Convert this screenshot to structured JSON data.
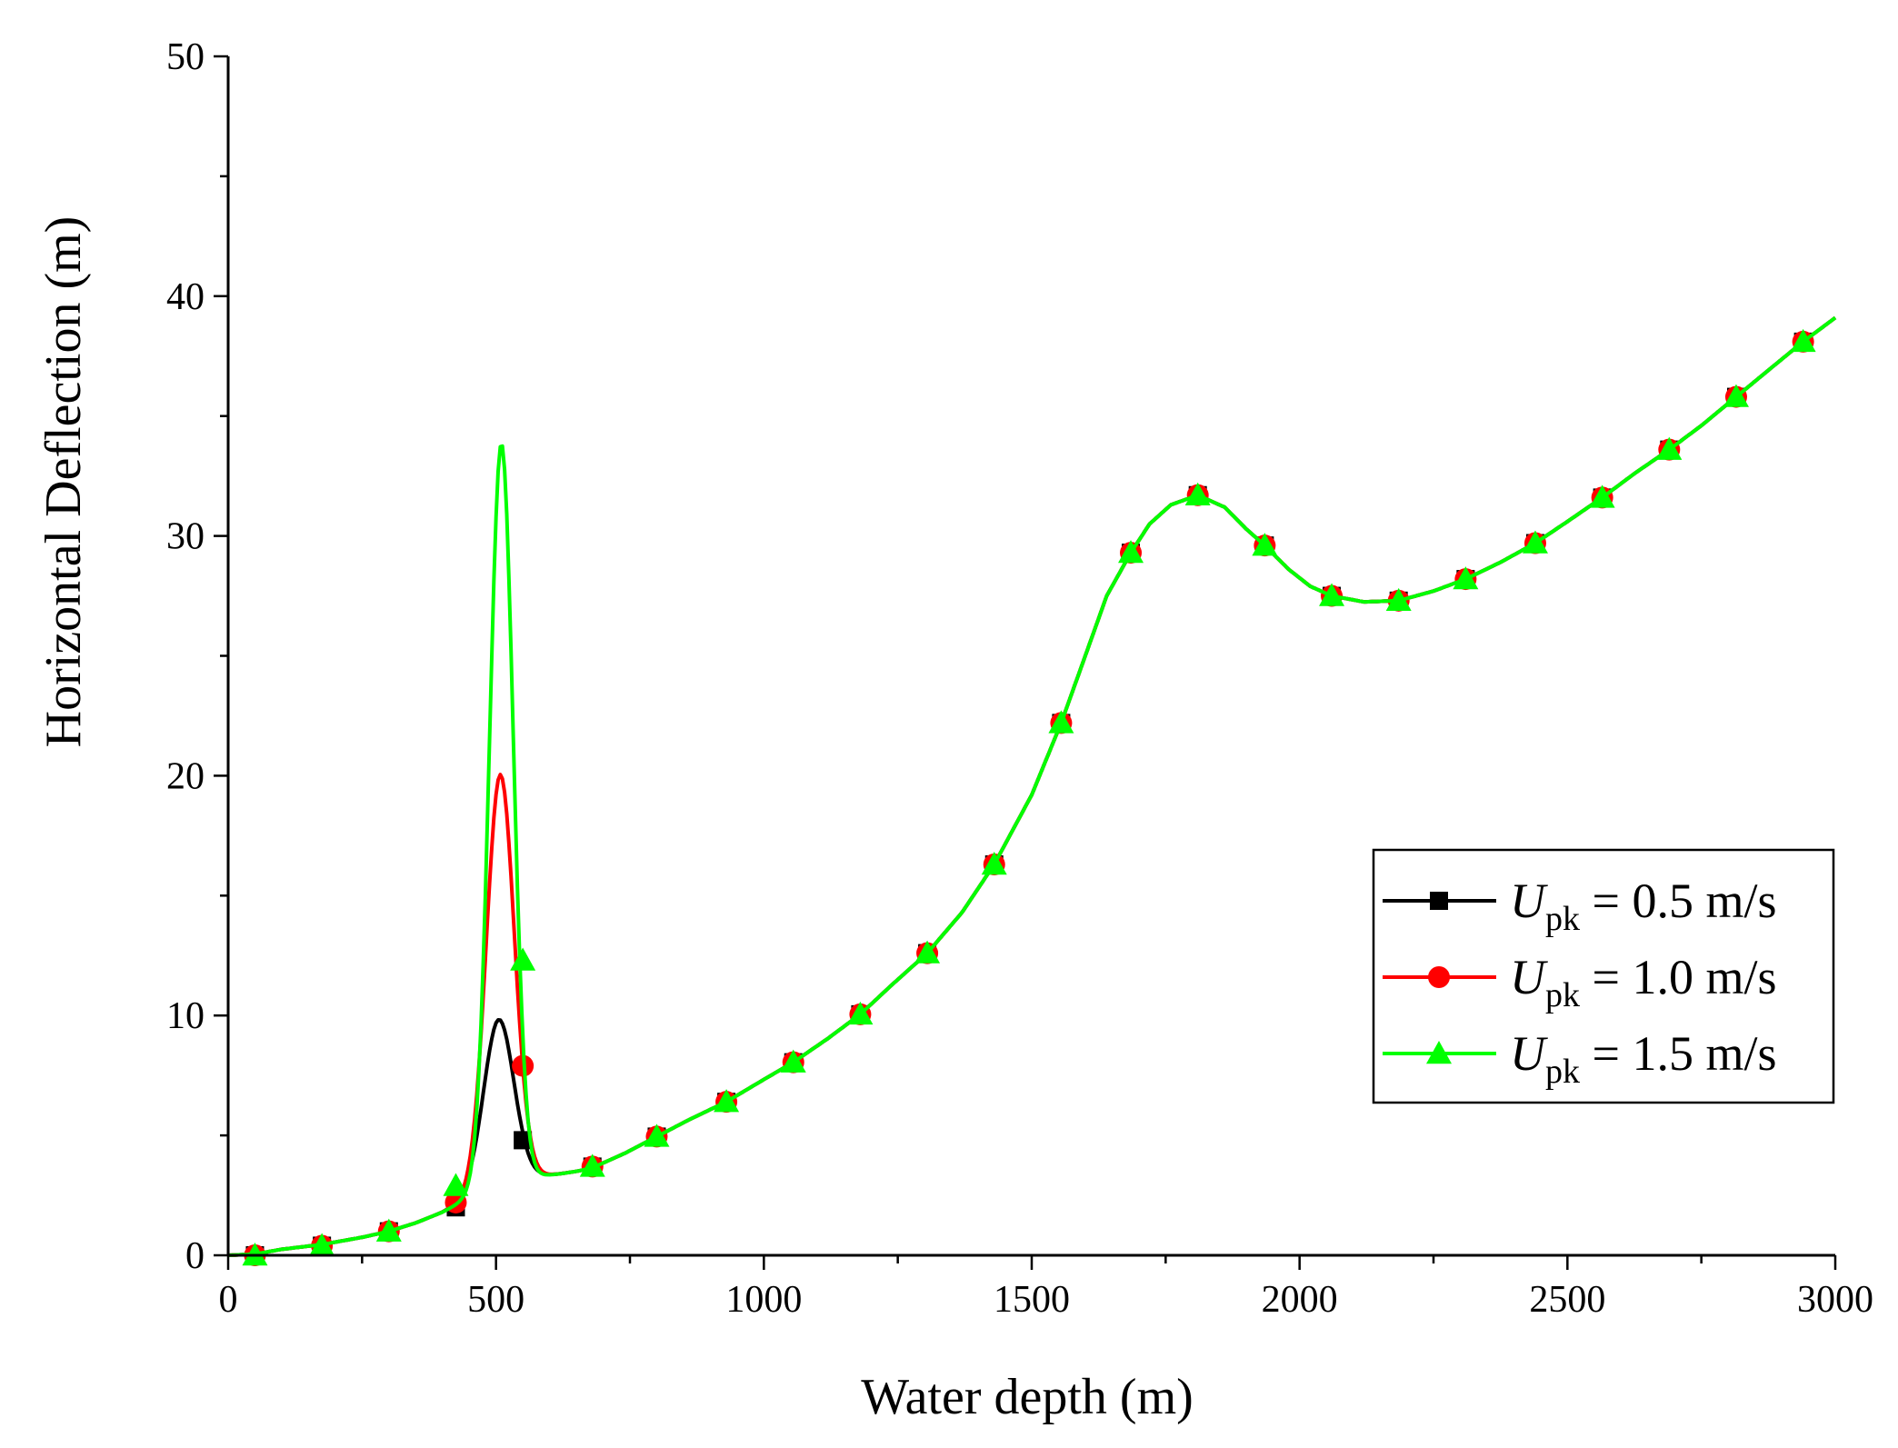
{
  "chart_data": {
    "type": "line",
    "title": "",
    "xlabel": "Water depth (m)",
    "ylabel": "Horizontal Deflection (m)",
    "xlim": [
      0,
      3000
    ],
    "ylim": [
      0,
      50
    ],
    "x_major_ticks": [
      0,
      500,
      1000,
      1500,
      2000,
      2500,
      3000
    ],
    "x_minor_step": 250,
    "y_major_ticks": [
      0,
      10,
      20,
      30,
      40,
      50
    ],
    "y_minor_step": 5,
    "x_tick_labels": [
      "0",
      "500",
      "1000",
      "1500",
      "2000",
      "2500",
      "3000"
    ],
    "y_tick_labels": [
      "0",
      "10",
      "20",
      "30",
      "40",
      "50"
    ],
    "grid": false,
    "legend_position": "right-middle",
    "base_curve": {
      "x": [
        0,
        50,
        100,
        175,
        250,
        300,
        350,
        400,
        425,
        450,
        475,
        500,
        525,
        550,
        575,
        600,
        620,
        650,
        680,
        740,
        800,
        860,
        930,
        990,
        1055,
        1120,
        1180,
        1240,
        1305,
        1370,
        1430,
        1500,
        1555,
        1600,
        1640,
        1685,
        1720,
        1760,
        1810,
        1860,
        1900,
        1935,
        1980,
        2020,
        2060,
        2120,
        2185,
        2250,
        2310,
        2375,
        2440,
        2500,
        2565,
        2625,
        2690,
        2750,
        2815,
        2880,
        2940,
        3000
      ],
      "y": [
        0,
        0.05,
        0.25,
        0.45,
        0.75,
        1.0,
        1.35,
        1.8,
        2.1,
        2.45,
        2.75,
        3.0,
        3.15,
        3.25,
        3.3,
        3.35,
        3.4,
        3.5,
        3.65,
        4.25,
        4.95,
        5.65,
        6.4,
        7.2,
        8.05,
        9.05,
        10.05,
        11.3,
        12.6,
        14.3,
        16.3,
        19.2,
        22.2,
        25.0,
        27.5,
        29.3,
        30.5,
        31.3,
        31.7,
        31.2,
        30.3,
        29.6,
        28.6,
        27.9,
        27.5,
        27.25,
        27.3,
        27.7,
        28.2,
        28.9,
        29.7,
        30.6,
        31.6,
        32.6,
        33.6,
        34.6,
        35.8,
        37.0,
        38.1,
        39.1
      ]
    },
    "series": [
      {
        "name": "U_pk = 0.5 m/s",
        "legend_var": "U",
        "legend_sub": "pk",
        "legend_rest": " = 0.5 m/s",
        "color": "#000000",
        "marker": "square",
        "peak": {
          "center": 505,
          "amplitude": 6.8,
          "sigma": 28
        },
        "markers_x": [
          50,
          175,
          300,
          425,
          550,
          680,
          800,
          930,
          1055,
          1180,
          1305,
          1430,
          1555,
          1685,
          1810,
          1935,
          2060,
          2185,
          2310,
          2440,
          2565,
          2690,
          2815,
          2940
        ],
        "markers_y": [
          0,
          0.4,
          1.0,
          2.0,
          4.8,
          3.7,
          4.95,
          6.4,
          8.05,
          10.05,
          12.6,
          16.3,
          22.2,
          29.3,
          31.7,
          29.6,
          27.5,
          27.3,
          28.2,
          29.7,
          31.6,
          33.6,
          35.8,
          38.1
        ]
      },
      {
        "name": "U_pk = 1.0 m/s",
        "legend_var": "U",
        "legend_sub": "pk",
        "legend_rest": " = 1.0 m/s",
        "color": "#ff0000",
        "marker": "circle",
        "peak": {
          "center": 508,
          "amplitude": 17.0,
          "sigma": 26
        },
        "markers_x": [
          50,
          175,
          300,
          425,
          550,
          680,
          800,
          930,
          1055,
          1180,
          1305,
          1430,
          1555,
          1685,
          1810,
          1935,
          2060,
          2185,
          2310,
          2440,
          2565,
          2690,
          2815,
          2940
        ],
        "markers_y": [
          0,
          0.4,
          1.0,
          2.2,
          7.9,
          3.7,
          4.95,
          6.4,
          8.05,
          10.05,
          12.6,
          16.3,
          22.2,
          29.3,
          31.7,
          29.6,
          27.5,
          27.3,
          28.2,
          29.7,
          31.6,
          33.6,
          35.8,
          38.1
        ]
      },
      {
        "name": "U_pk = 1.5 m/s",
        "legend_var": "U",
        "legend_sub": "pk",
        "legend_rest": " = 1.5 m/s",
        "color": "#00ff00",
        "marker": "triangle",
        "peak": {
          "center": 510,
          "amplitude": 30.8,
          "sigma": 22
        },
        "markers_x": [
          50,
          175,
          300,
          425,
          550,
          680,
          800,
          930,
          1055,
          1180,
          1305,
          1430,
          1555,
          1685,
          1810,
          1935,
          2060,
          2185,
          2310,
          2440,
          2565,
          2690,
          2815,
          2940
        ],
        "markers_y": [
          0,
          0.4,
          1.0,
          2.9,
          12.3,
          3.7,
          4.95,
          6.4,
          8.05,
          10.05,
          12.6,
          16.3,
          22.2,
          29.3,
          31.7,
          29.6,
          27.5,
          27.3,
          28.2,
          29.7,
          31.6,
          33.6,
          35.8,
          38.1
        ]
      }
    ]
  }
}
